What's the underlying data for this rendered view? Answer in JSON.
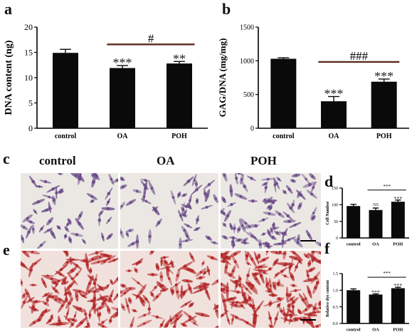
{
  "panels": {
    "a": "a",
    "b": "b",
    "c": "c",
    "d": "d",
    "e": "e",
    "f": "f"
  },
  "image_columns": [
    "control",
    "OA",
    "POH"
  ],
  "colors": {
    "bar": "#0a0a0a",
    "bracket": "#5a2a1f",
    "stain_top": "#6a4a86",
    "stain_bottom": "#b3282a"
  },
  "chart_data": [
    {
      "id": "a",
      "type": "bar",
      "categories": [
        "control",
        "OA",
        "POH"
      ],
      "values": [
        14.9,
        11.9,
        12.8
      ],
      "errors": [
        0.7,
        0.5,
        0.4
      ],
      "ylabel": "DNA content (ng)",
      "ylim": [
        0,
        20
      ],
      "yticks": [
        "0",
        "5",
        "10",
        "15",
        "20"
      ],
      "significance": [
        "",
        "***",
        "**"
      ],
      "bracket": {
        "from": "OA",
        "to": "POH",
        "label": "#"
      }
    },
    {
      "id": "b",
      "type": "bar",
      "categories": [
        "control",
        "OA",
        "POH"
      ],
      "values": [
        1030,
        400,
        690
      ],
      "errors": [
        15,
        70,
        40
      ],
      "ylabel": "GAG/DNA (mg/mg)",
      "ylim": [
        0,
        1500
      ],
      "yticks": [
        "0",
        "500",
        "1000",
        "1500"
      ],
      "significance": [
        "",
        "***",
        "***"
      ],
      "bracket": {
        "from": "OA",
        "to": "POH",
        "label": "###"
      }
    },
    {
      "id": "d",
      "type": "bar",
      "categories": [
        "control",
        "OA",
        "POH"
      ],
      "values": [
        96,
        84,
        109
      ],
      "errors": [
        5,
        6,
        5
      ],
      "ylabel": "Cell Number",
      "ylim": [
        0,
        150
      ],
      "yticks": [
        "0",
        "50",
        "100",
        "150"
      ],
      "significance": [
        "",
        "NS",
        "***"
      ],
      "bracket": {
        "from": "OA",
        "to": "POH",
        "label": "***"
      }
    },
    {
      "id": "f",
      "type": "bar",
      "categories": [
        "control",
        "OA",
        "POH"
      ],
      "values": [
        1.0,
        0.87,
        1.06
      ],
      "errors": [
        0.04,
        0.02,
        0.03
      ],
      "ylabel": "Relative dye content",
      "ylim": [
        0,
        1.5
      ],
      "yticks": [
        "0.0",
        "0.5",
        "1.0",
        "1.5"
      ],
      "significance": [
        "",
        "***",
        "***"
      ],
      "bracket": {
        "from": "OA",
        "to": "POH",
        "label": "***"
      }
    }
  ]
}
